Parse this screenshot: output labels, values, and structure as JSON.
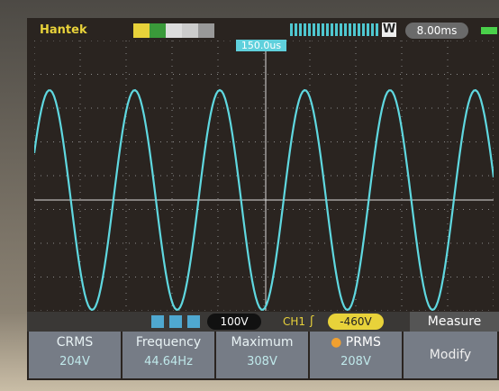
{
  "header": {
    "brand": "Hantek",
    "trigger_time": "150.0us",
    "mode": "W",
    "timebase": "8.00ms"
  },
  "status": {
    "ch_scale": "100V",
    "channel": "CH1",
    "trigger_level": "-460V",
    "menu": "Measure"
  },
  "measurements": [
    {
      "label": "CRMS",
      "value": "204V"
    },
    {
      "label": "Frequency",
      "value": "44.64Hz"
    },
    {
      "label": "Maximum",
      "value": "308V"
    },
    {
      "label": "PRMS",
      "value": "208V"
    }
  ],
  "button": "Modify"
}
